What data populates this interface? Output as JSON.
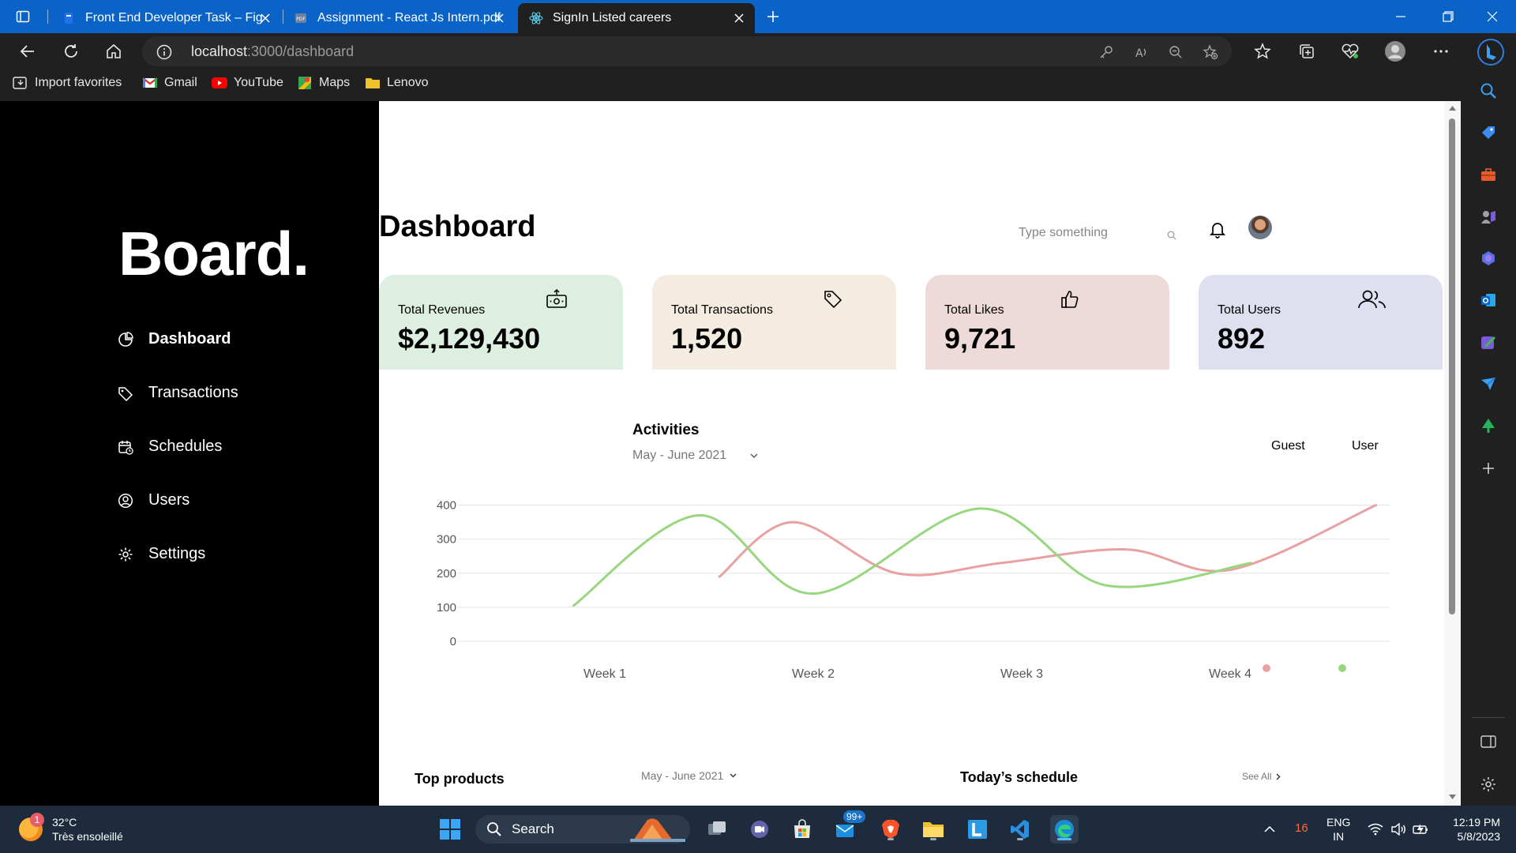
{
  "browser": {
    "tabs": [
      {
        "title": "Front End Developer Task – Figm",
        "active": false
      },
      {
        "title": "Assignment - React Js Intern.pdf",
        "active": false
      },
      {
        "title": "SignIn Listed careers",
        "active": true
      }
    ],
    "url_host": "localhost",
    "url_path": ":3000/dashboard",
    "favorites": [
      "Import favorites",
      "Gmail",
      "YouTube",
      "Maps",
      "Lenovo"
    ]
  },
  "sidebar": {
    "brand": "Board.",
    "items": [
      {
        "label": "Dashboard",
        "icon": "pie-chart-icon",
        "active": true
      },
      {
        "label": "Transactions",
        "icon": "tag-icon",
        "active": false
      },
      {
        "label": "Schedules",
        "icon": "calendar-icon",
        "active": false
      },
      {
        "label": "Users",
        "icon": "user-circle-icon",
        "active": false
      },
      {
        "label": "Settings",
        "icon": "gear-icon",
        "active": false
      }
    ]
  },
  "header": {
    "title": "Dashboard",
    "search_placeholder": "Type something"
  },
  "cards": [
    {
      "label": "Total Revenues",
      "value": "$2,129,430",
      "icon": "money-icon",
      "color": "#ddefe0"
    },
    {
      "label": "Total Transactions",
      "value": "1,520",
      "icon": "tag-icon",
      "color": "#f4ece1"
    },
    {
      "label": "Total Likes",
      "value": "9,721",
      "icon": "thumbs-up-icon",
      "color": "#efdada"
    },
    {
      "label": "Total Users",
      "value": "892",
      "icon": "users-icon",
      "color": "#dee0ef"
    }
  ],
  "activities": {
    "title": "Activities",
    "range": "May - June 2021",
    "legend": [
      "Guest",
      "User"
    ]
  },
  "chart_data": {
    "type": "line",
    "title": "Activities",
    "categories": [
      "Week 1",
      "Week 2",
      "Week 3",
      "Week 4"
    ],
    "yticks": [
      0,
      100,
      200,
      300,
      400,
      500
    ],
    "ylim": [
      0,
      450
    ],
    "grid": true,
    "legend_position": "top-right",
    "series": [
      {
        "name": "Guest",
        "color": "#e9a0a0",
        "x": [
          1.55,
          1.9,
          2.4,
          2.9,
          3.5,
          4.0,
          4.7
        ],
        "y": [
          190,
          350,
          200,
          230,
          270,
          210,
          400
        ]
      },
      {
        "name": "User",
        "color": "#98d67f",
        "x": [
          0.85,
          1.45,
          2.0,
          2.8,
          3.4,
          4.1
        ],
        "y": [
          105,
          370,
          140,
          390,
          165,
          230
        ]
      }
    ]
  },
  "bottom": {
    "top_products": "Top products",
    "top_products_range": "May - June 2021",
    "schedule_title": "Today’s schedule",
    "see_all": "See All"
  },
  "taskbar": {
    "weather_temp": "32°C",
    "weather_desc": "Très ensoleillé",
    "weather_badge": "1",
    "search_label": "Search",
    "mail_badge": "99+",
    "tray_number": "16",
    "lang_line1": "ENG",
    "lang_line2": "IN",
    "time": "12:19 PM",
    "date": "5/8/2023"
  }
}
